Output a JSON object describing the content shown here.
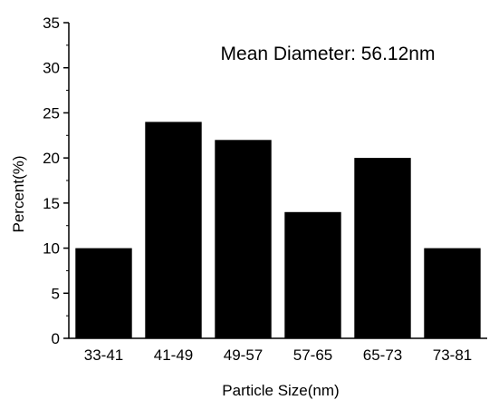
{
  "chart_data": {
    "type": "bar",
    "title": "",
    "annotation": "Mean Diameter: 56.12nm",
    "xlabel": "Particle Size(nm)",
    "ylabel": "Percent(%)",
    "categories": [
      "33-41",
      "41-49",
      "49-57",
      "57-65",
      "65-73",
      "73-81"
    ],
    "values": [
      10,
      24,
      22,
      14,
      20,
      10
    ],
    "ylim": [
      0,
      35
    ],
    "yticks": [
      0,
      5,
      10,
      15,
      20,
      25,
      30,
      35
    ],
    "bar_color": "#000000",
    "grid": false,
    "legend": "none"
  }
}
